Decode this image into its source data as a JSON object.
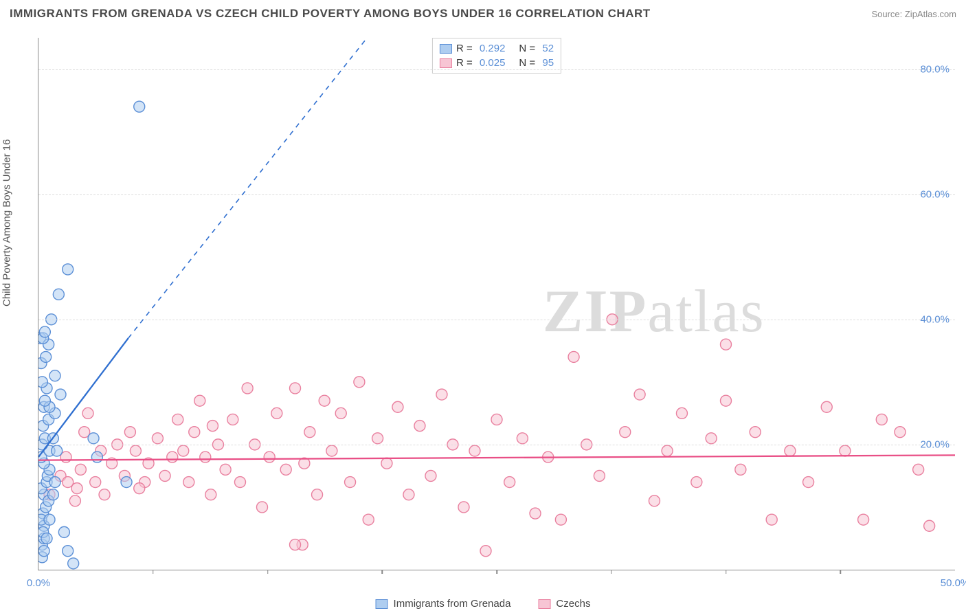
{
  "chart": {
    "type": "scatter",
    "title": "IMMIGRANTS FROM GRENADA VS CZECH CHILD POVERTY AMONG BOYS UNDER 16 CORRELATION CHART",
    "source_label": "Source: ZipAtlas.com",
    "y_axis_label": "Child Poverty Among Boys Under 16",
    "watermark": {
      "left": "ZIP",
      "right": "atlas"
    },
    "background_color": "#ffffff",
    "grid_color": "#dddddd",
    "axis_color": "#888888",
    "title_color": "#4a4a4a",
    "title_fontsize": 17,
    "tick_fontsize": 15,
    "tick_color": "#5b8fd6",
    "xlim": [
      0,
      50
    ],
    "ylim": [
      0,
      85
    ],
    "x_ticks": [
      0,
      50
    ],
    "x_tick_labels": [
      "0.0%",
      "50.0%"
    ],
    "x_minor_ticks": [
      6.25,
      12.5,
      18.75,
      25,
      31.25,
      37.5,
      43.75
    ],
    "y_ticks": [
      20,
      40,
      60,
      80
    ],
    "y_tick_labels": [
      "20.0%",
      "40.0%",
      "60.0%",
      "80.0%"
    ],
    "series": [
      {
        "name": "Immigrants from Grenada",
        "marker_fill": "#aecdf0",
        "marker_stroke": "#5b8fd6",
        "marker_fill_opacity": 0.55,
        "marker_radius": 8,
        "line_color": "#2f6fd0",
        "R": "0.292",
        "N": "52",
        "regression": {
          "x0": 0,
          "y0": 18,
          "x1": 4.9,
          "y1": 37,
          "dash_continue": true,
          "x2": 22,
          "y2": 100
        },
        "points": [
          [
            0.1,
            37
          ],
          [
            0.2,
            2
          ],
          [
            0.2,
            4
          ],
          [
            0.3,
            5
          ],
          [
            0.3,
            7
          ],
          [
            0.25,
            9
          ],
          [
            0.4,
            10
          ],
          [
            0.3,
            12
          ],
          [
            0.15,
            13
          ],
          [
            0.45,
            14
          ],
          [
            0.5,
            15
          ],
          [
            0.6,
            16
          ],
          [
            0.3,
            17
          ],
          [
            0.15,
            18
          ],
          [
            0.6,
            19
          ],
          [
            1.0,
            19
          ],
          [
            0.2,
            20
          ],
          [
            0.35,
            21
          ],
          [
            0.8,
            21
          ],
          [
            0.25,
            23
          ],
          [
            0.55,
            24
          ],
          [
            0.9,
            25
          ],
          [
            0.3,
            26
          ],
          [
            0.6,
            26
          ],
          [
            0.35,
            27
          ],
          [
            1.2,
            28
          ],
          [
            0.45,
            29
          ],
          [
            0.2,
            30
          ],
          [
            0.9,
            31
          ],
          [
            0.15,
            33
          ],
          [
            0.4,
            34
          ],
          [
            0.55,
            36
          ],
          [
            0.25,
            37
          ],
          [
            0.35,
            38
          ],
          [
            0.7,
            40
          ],
          [
            1.1,
            44
          ],
          [
            0.15,
            8
          ],
          [
            0.55,
            11
          ],
          [
            0.9,
            14
          ],
          [
            0.25,
            6
          ],
          [
            1.6,
            48
          ],
          [
            3.0,
            21
          ],
          [
            3.2,
            18
          ],
          [
            4.8,
            14
          ],
          [
            5.5,
            74
          ],
          [
            1.4,
            6
          ],
          [
            1.6,
            3
          ],
          [
            1.9,
            1
          ],
          [
            0.3,
            3
          ],
          [
            0.45,
            5
          ],
          [
            0.6,
            8
          ],
          [
            0.8,
            12
          ]
        ]
      },
      {
        "name": "Czechs",
        "marker_fill": "#f7c5d4",
        "marker_stroke": "#e9809f",
        "marker_fill_opacity": 0.55,
        "marker_radius": 8,
        "line_color": "#e94f86",
        "R": "0.025",
        "N": "95",
        "regression": {
          "x0": 0,
          "y0": 17.5,
          "x1": 50,
          "y1": 18.3,
          "dash_continue": false
        },
        "points": [
          [
            0.6,
            12
          ],
          [
            1.2,
            15
          ],
          [
            1.5,
            18
          ],
          [
            1.6,
            14
          ],
          [
            2.1,
            13
          ],
          [
            2.3,
            16
          ],
          [
            2.5,
            22
          ],
          [
            2.7,
            25
          ],
          [
            3.1,
            14
          ],
          [
            3.4,
            19
          ],
          [
            3.6,
            12
          ],
          [
            4.0,
            17
          ],
          [
            4.3,
            20
          ],
          [
            4.7,
            15
          ],
          [
            5.0,
            22
          ],
          [
            5.3,
            19
          ],
          [
            5.8,
            14
          ],
          [
            6.0,
            17
          ],
          [
            6.5,
            21
          ],
          [
            6.9,
            15
          ],
          [
            7.3,
            18
          ],
          [
            7.6,
            24
          ],
          [
            7.9,
            19
          ],
          [
            8.2,
            14
          ],
          [
            8.5,
            22
          ],
          [
            8.8,
            27
          ],
          [
            9.1,
            18
          ],
          [
            9.4,
            12
          ],
          [
            9.8,
            20
          ],
          [
            10.2,
            16
          ],
          [
            10.6,
            24
          ],
          [
            11.0,
            14
          ],
          [
            11.4,
            29
          ],
          [
            11.8,
            20
          ],
          [
            12.2,
            10
          ],
          [
            12.6,
            18
          ],
          [
            13.0,
            25
          ],
          [
            13.5,
            16
          ],
          [
            14.0,
            29
          ],
          [
            14.4,
            4
          ],
          [
            14.8,
            22
          ],
          [
            15.2,
            12
          ],
          [
            15.6,
            27
          ],
          [
            16.0,
            19
          ],
          [
            16.5,
            25
          ],
          [
            17.0,
            14
          ],
          [
            17.5,
            30
          ],
          [
            18.0,
            8
          ],
          [
            18.5,
            21
          ],
          [
            19.0,
            17
          ],
          [
            19.6,
            26
          ],
          [
            20.2,
            12
          ],
          [
            20.8,
            23
          ],
          [
            21.4,
            15
          ],
          [
            22.0,
            28
          ],
          [
            22.6,
            20
          ],
          [
            23.2,
            10
          ],
          [
            23.8,
            19
          ],
          [
            24.4,
            3
          ],
          [
            25.0,
            24
          ],
          [
            25.7,
            14
          ],
          [
            26.4,
            21
          ],
          [
            27.1,
            9
          ],
          [
            27.8,
            18
          ],
          [
            28.5,
            8
          ],
          [
            29.2,
            34
          ],
          [
            29.9,
            20
          ],
          [
            30.6,
            15
          ],
          [
            31.3,
            40
          ],
          [
            32.0,
            22
          ],
          [
            32.8,
            28
          ],
          [
            33.6,
            11
          ],
          [
            34.3,
            19
          ],
          [
            35.1,
            25
          ],
          [
            35.9,
            14
          ],
          [
            36.7,
            21
          ],
          [
            37.5,
            27
          ],
          [
            37.5,
            36
          ],
          [
            38.3,
            16
          ],
          [
            39.1,
            22
          ],
          [
            40.0,
            8
          ],
          [
            41.0,
            19
          ],
          [
            42.0,
            14
          ],
          [
            43.0,
            26
          ],
          [
            44.0,
            19
          ],
          [
            45.0,
            8
          ],
          [
            46.0,
            24
          ],
          [
            47.0,
            22
          ],
          [
            48.0,
            16
          ],
          [
            48.6,
            7
          ],
          [
            2.0,
            11
          ],
          [
            5.5,
            13
          ],
          [
            9.5,
            23
          ],
          [
            14.5,
            17
          ],
          [
            14.0,
            4
          ]
        ]
      }
    ]
  }
}
